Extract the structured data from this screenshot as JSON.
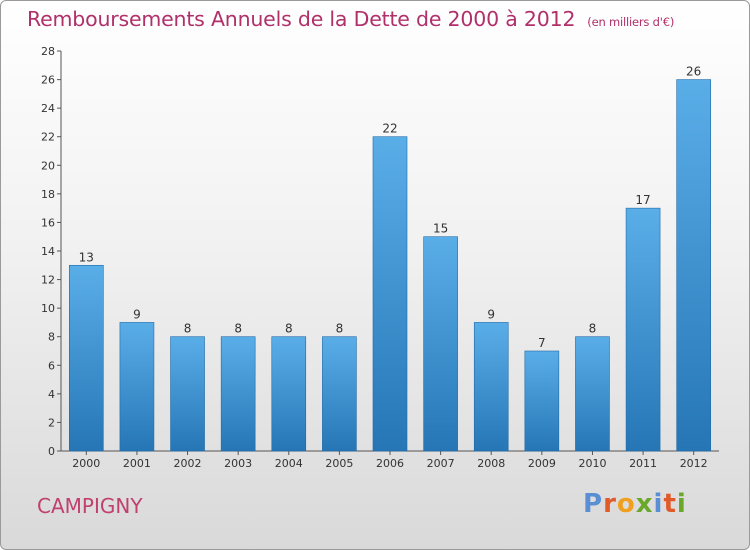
{
  "header": {
    "title": "Remboursements Annuels de la Dette de 2000 à 2012",
    "unit": "(en milliers d'€)"
  },
  "footer": {
    "commune": "CAMPIGNY",
    "logo": "Proxiti"
  },
  "colors": {
    "bar_top": "#5aaee8",
    "bar_bottom": "#2676b6",
    "title": "#b0306a",
    "logo_letters": [
      "#5a8fd6",
      "#e05a2a",
      "#f0a020",
      "#6aa82a",
      "#5a8fd6",
      "#e05a2a",
      "#6aa82a"
    ]
  },
  "chart_data": {
    "type": "bar",
    "title": "Remboursements Annuels de la Dette de 2000 à 2012",
    "xlabel": "",
    "ylabel": "",
    "categories": [
      "2000",
      "2001",
      "2002",
      "2003",
      "2004",
      "2005",
      "2006",
      "2007",
      "2008",
      "2009",
      "2010",
      "2011",
      "2012"
    ],
    "values": [
      13,
      9,
      8,
      8,
      8,
      8,
      22,
      15,
      9,
      7,
      8,
      17,
      26
    ],
    "ylim": [
      0,
      28
    ],
    "yticks": [
      0,
      2,
      4,
      6,
      8,
      10,
      12,
      14,
      16,
      18,
      20,
      22,
      24,
      26,
      28
    ],
    "grid": false,
    "legend": "none",
    "data_labels": true
  }
}
